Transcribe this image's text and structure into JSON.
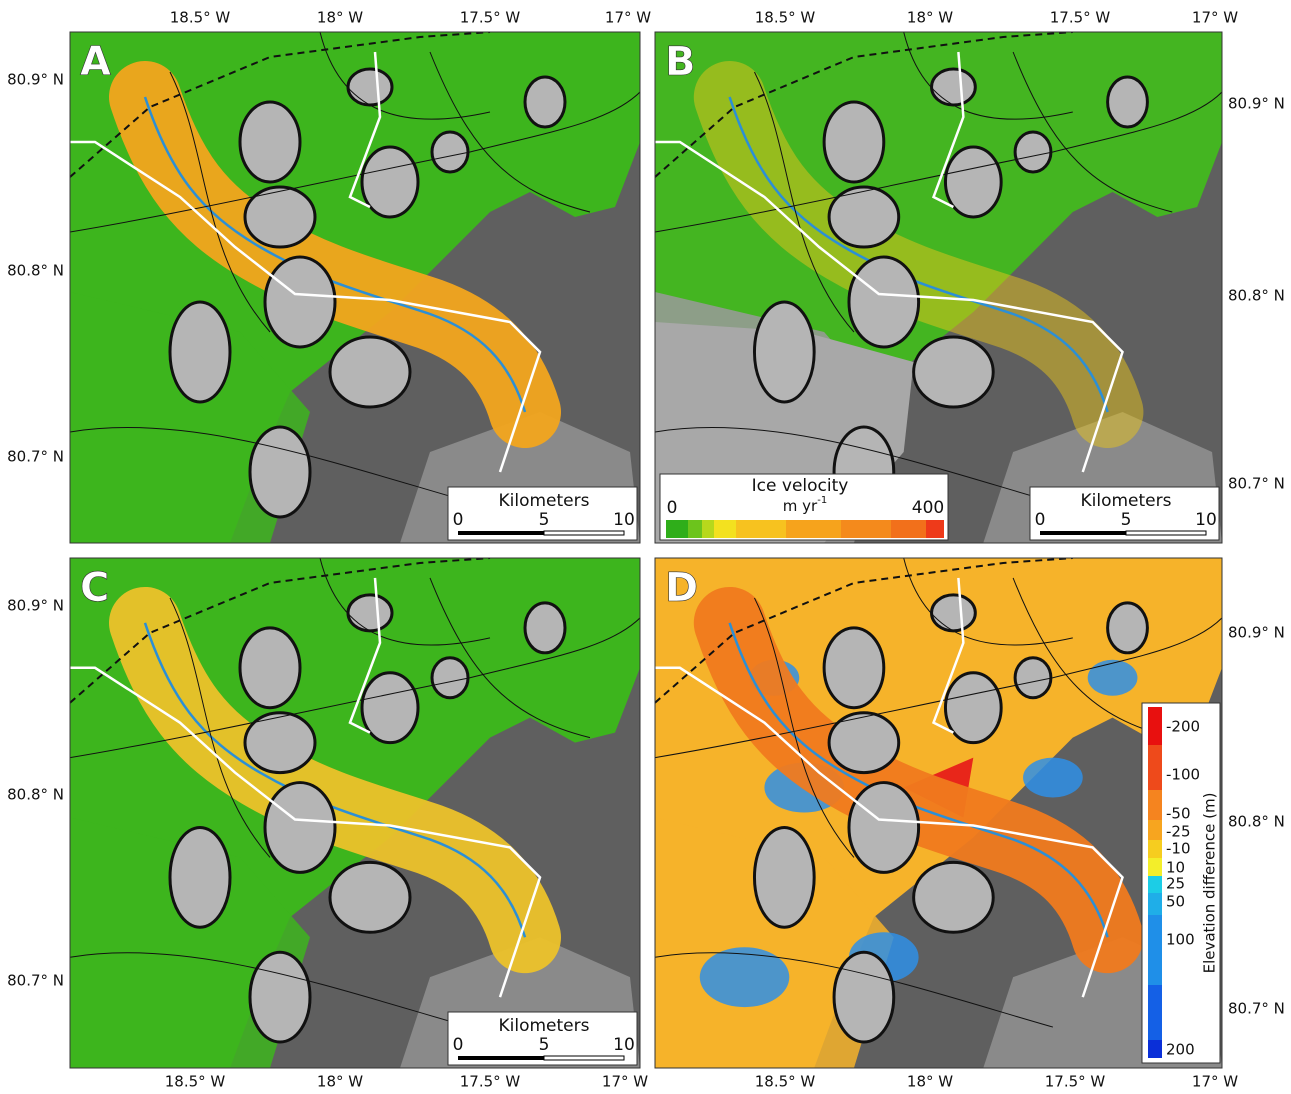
{
  "panels": [
    {
      "label": "A",
      "ticks_top": [
        "18.5° W",
        "18° W",
        "17.5° W",
        "17° W"
      ],
      "ticks_left": [
        "80.9° N",
        "80.8° N",
        "80.7° N"
      ],
      "scale_bar": {
        "title": "Kilometers",
        "ticks": [
          "0",
          "5",
          "10"
        ]
      }
    },
    {
      "label": "B",
      "ticks_top": [
        "18.5° W",
        "18° W",
        "17.5° W",
        "17° W"
      ],
      "ticks_right": [
        "80.9° N",
        "80.8° N",
        "80.7° N"
      ],
      "scale_bar": {
        "title": "Kilometers",
        "ticks": [
          "0",
          "5",
          "10"
        ]
      },
      "velocity_legend": {
        "title": "Ice velocity",
        "unit": "m yr",
        "unit_sup": "-1",
        "ticks": [
          "0",
          "400"
        ]
      }
    },
    {
      "label": "C",
      "ticks_left": [
        "80.9° N",
        "80.8° N",
        "80.7° N"
      ],
      "ticks_bottom": [
        "18.5° W",
        "18° W",
        "17.5° W",
        "17° W"
      ],
      "scale_bar": {
        "title": "Kilometers",
        "ticks": [
          "0",
          "5",
          "10"
        ]
      }
    },
    {
      "label": "D",
      "ticks_right": [
        "80.9° N",
        "80.8° N",
        "80.7° N"
      ],
      "ticks_bottom": [
        "18.5° W",
        "18° W",
        "17.5° W",
        "17° W"
      ],
      "elevation_legend": {
        "title": "Elevation difference (m)",
        "ticks": [
          "-200",
          "-100",
          "-50",
          "-25",
          "-10",
          "10",
          "25",
          "50",
          "100",
          "200"
        ]
      }
    }
  ]
}
